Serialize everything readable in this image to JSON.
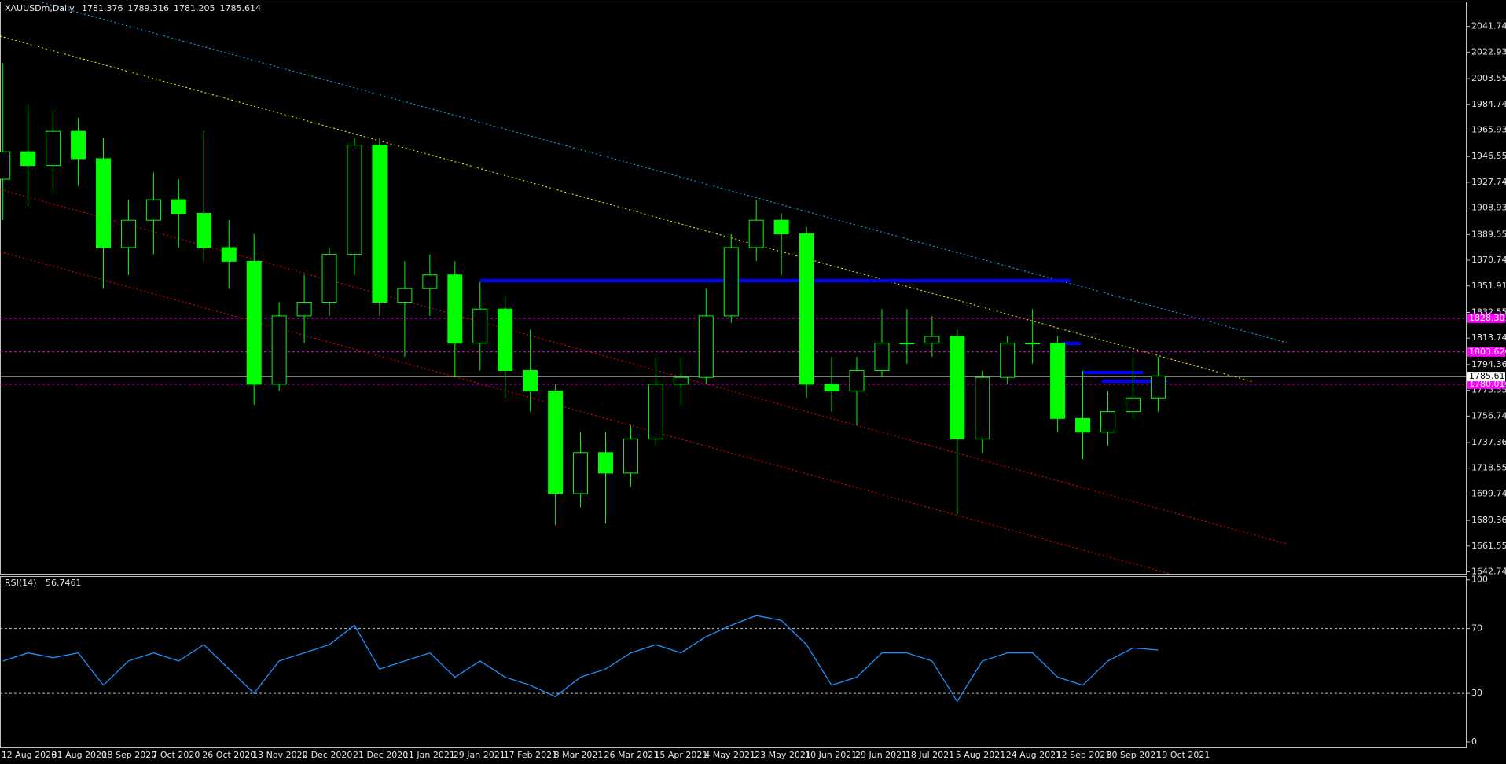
{
  "chart_data": [
    {
      "type": "candlestick",
      "title": "XAUUSDm,Daily",
      "header_values": [
        1781.376,
        1789.316,
        1781.205,
        1785.614
      ],
      "categories": [
        "12 Aug 2020",
        null,
        "31 Aug 2020",
        null,
        "18 Sep 2020",
        null,
        "7 Oct 2020",
        null,
        "26 Oct 2020",
        null,
        "13 Nov 2020",
        null,
        "2 Dec 2020",
        null,
        "21 Dec 2020",
        null,
        "11 Jan 2021",
        null,
        "29 Jan 2021",
        null,
        "17 Feb 2021",
        null,
        "8 Mar 2021",
        null,
        "26 Mar 2021",
        null,
        "15 Apr 2021",
        null,
        "4 May 2021",
        null,
        "23 May 2021",
        null,
        "10 Jun 2021",
        null,
        "29 Jun 2021",
        null,
        "18 Jul 2021",
        null,
        "5 Aug 2021",
        null,
        "24 Aug 2021",
        null,
        "12 Sep 2021",
        null,
        "30 Sep 2021",
        null,
        "19 Oct 2021"
      ],
      "open": [
        1930,
        1950,
        1940,
        1965,
        1945,
        1880,
        1900,
        1915,
        1905,
        1880,
        1870,
        1780,
        1830,
        1840,
        1875,
        1955,
        1840,
        1850,
        1860,
        1810,
        1835,
        1790,
        1775,
        1700,
        1730,
        1715,
        1740,
        1780,
        1785,
        1830,
        1880,
        1900,
        1890,
        1780,
        1775,
        1790,
        1810,
        1810,
        1815,
        1740,
        1785,
        1810,
        1810,
        1755,
        1745,
        1760,
        1770
      ],
      "high": [
        2015,
        1985,
        1980,
        1975,
        1960,
        1915,
        1935,
        1930,
        1965,
        1900,
        1890,
        1840,
        1860,
        1880,
        1960,
        1960,
        1870,
        1875,
        1870,
        1855,
        1845,
        1820,
        1780,
        1745,
        1745,
        1750,
        1800,
        1800,
        1850,
        1890,
        1915,
        1905,
        1895,
        1800,
        1800,
        1835,
        1835,
        1830,
        1820,
        1790,
        1815,
        1835,
        1815,
        1790,
        1775,
        1800,
        1800
      ],
      "low": [
        1900,
        1910,
        1920,
        1925,
        1850,
        1860,
        1875,
        1880,
        1870,
        1850,
        1765,
        1775,
        1810,
        1830,
        1860,
        1830,
        1800,
        1830,
        1785,
        1790,
        1770,
        1760,
        1677,
        1690,
        1678,
        1705,
        1735,
        1765,
        1780,
        1825,
        1870,
        1860,
        1770,
        1760,
        1750,
        1785,
        1795,
        1800,
        1685,
        1730,
        1780,
        1795,
        1745,
        1725,
        1735,
        1755,
        1760
      ],
      "close": [
        1950,
        1940,
        1965,
        1945,
        1880,
        1900,
        1915,
        1905,
        1880,
        1870,
        1780,
        1830,
        1840,
        1875,
        1955,
        1840,
        1850,
        1860,
        1810,
        1835,
        1790,
        1775,
        1700,
        1730,
        1715,
        1740,
        1780,
        1785,
        1830,
        1880,
        1900,
        1890,
        1780,
        1775,
        1790,
        1810,
        1810,
        1815,
        1740,
        1785,
        1810,
        1810,
        1755,
        1745,
        1760,
        1770,
        1786
      ],
      "color": "#00ff00",
      "ylim": [
        1641.33,
        2059.97
      ],
      "yticks": [
        {
          "value": 1642.74,
          "label": "1642.740"
        },
        {
          "value": 1661.55,
          "label": "1661.550"
        },
        {
          "value": 1680.36,
          "label": "1680.360"
        },
        {
          "value": 1699.74,
          "label": "1699.740"
        },
        {
          "value": 1718.55,
          "label": "1718.550"
        },
        {
          "value": 1737.36,
          "label": "1737.360"
        },
        {
          "value": 1756.74,
          "label": "1756.740"
        },
        {
          "value": 1775.55,
          "label": "1775.550"
        },
        {
          "value": 1794.36,
          "label": "1794.360"
        },
        {
          "value": 1813.74,
          "label": "1813.740"
        },
        {
          "value": 1832.55,
          "label": "1832.550"
        },
        {
          "value": 1851.91,
          "label": "1851.910"
        },
        {
          "value": 1870.74,
          "label": "1870.740"
        },
        {
          "value": 1889.55,
          "label": "1889.550"
        },
        {
          "value": 1908.93,
          "label": "1908.930"
        },
        {
          "value": 1927.74,
          "label": "1927.740"
        },
        {
          "value": 1946.55,
          "label": "1946.550"
        },
        {
          "value": 1965.93,
          "label": "1965.930"
        },
        {
          "value": 1984.74,
          "label": "1984.740"
        },
        {
          "value": 2003.55,
          "label": "2003.550"
        },
        {
          "value": 2022.93,
          "label": "2022.930"
        },
        {
          "value": 2041.74,
          "label": "2041.740"
        }
      ],
      "levels": [
        1828.305,
        {
          "value": 1803.62,
          "label": "1803.620"
        },
        {
          "value": 1780.01,
          "label": "1780.010"
        }
      ],
      "level_color": "#ff00ff"
    },
    {
      "type": "line",
      "title": "RSI(14)",
      "current_value": 56.7461,
      "values": [
        50,
        55,
        52,
        55,
        35,
        50,
        55,
        50,
        60,
        45,
        30,
        50,
        55,
        60,
        72,
        45,
        50,
        55,
        40,
        50,
        40,
        35,
        28,
        40,
        45,
        55,
        60,
        55,
        65,
        72,
        78,
        75,
        60,
        35,
        40,
        55,
        55,
        50,
        25,
        50,
        55,
        55,
        40,
        35,
        50,
        58,
        56.7461
      ],
      "color": "#1e90ff",
      "ylim": [
        -3.4,
        102.3
      ],
      "yticks": [
        0,
        30,
        70,
        100
      ],
      "levels": [
        30,
        70
      ]
    }
  ]
}
